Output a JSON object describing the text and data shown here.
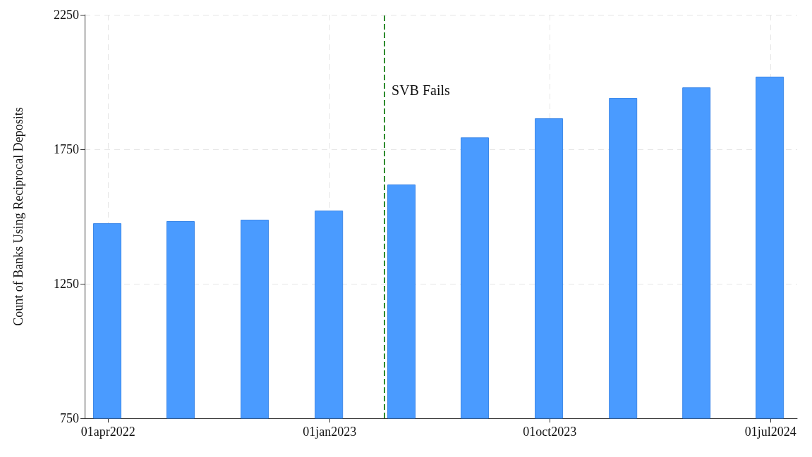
{
  "chart_data": {
    "type": "bar",
    "ylabel": "Count of Banks Using Reciprocal Deposits",
    "x": [
      "2022-03-31",
      "2022-06-30",
      "2022-09-30",
      "2022-12-31",
      "2023-03-31",
      "2023-06-30",
      "2023-09-30",
      "2023-12-31",
      "2024-03-31",
      "2024-06-30"
    ],
    "series": [
      {
        "color": "#4a9bff",
        "values": [
          1475,
          1483,
          1488,
          1522,
          1619,
          1794,
          1865,
          1941,
          1980,
          2020
        ]
      }
    ],
    "xlim": [
      "2022-03-03",
      "2024-08-03"
    ],
    "xticks": [
      {
        "value": "2022-04-01",
        "label": "01apr2022"
      },
      {
        "value": "2023-01-01",
        "label": "01jan2023"
      },
      {
        "value": "2023-10-01",
        "label": "01oct2023"
      },
      {
        "value": "2024-07-01",
        "label": "01jul2024"
      }
    ],
    "ylim": [
      750,
      2250
    ],
    "yticks": [
      750,
      1250,
      1750,
      2250
    ],
    "grid": true,
    "ref_lines": [
      {
        "axis": "x",
        "value": "2023-03-10",
        "label": "SVB Fails",
        "color": "#2e8b2e",
        "line_style": "dashed"
      }
    ]
  }
}
